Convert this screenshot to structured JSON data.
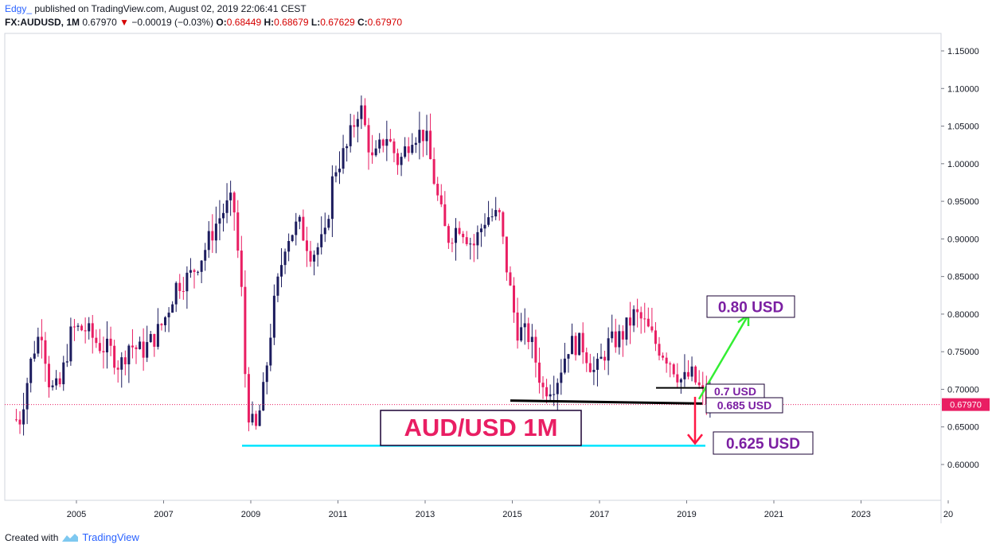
{
  "header": {
    "author": "Edgy_",
    "published": "published on TradingView.com, August 02, 2019 22:06:41 CEST",
    "symbol": "FX:AUDUSD, 1M",
    "last": "0.67970",
    "change": "−0.00019 (−0.03%)",
    "o_label": "O:",
    "o": "0.68449",
    "h_label": "H:",
    "h": "0.68679",
    "l_label": "L:",
    "l": "0.67629",
    "c_label": "C:",
    "c": "0.67970"
  },
  "footer": {
    "created_with": "Created with",
    "brand": "TradingView"
  },
  "colors": {
    "up": "#1c1c5e",
    "down": "#e91e63",
    "support": "#00e5ff",
    "green_arrow": "#33ee33",
    "red_arrow": "#ff1744",
    "label_purple": "#7b1fa2"
  },
  "chart_data": {
    "type": "candlestick",
    "title": "AUD/USD 1M",
    "y_axis": {
      "ticks": [
        "1.15000",
        "1.10000",
        "1.05000",
        "1.00000",
        "0.95000",
        "0.90000",
        "0.85000",
        "0.80000",
        "0.75000",
        "0.70000",
        "0.65000",
        "0.60000"
      ],
      "range": [
        0.57,
        1.17
      ]
    },
    "x_axis": {
      "ticks": [
        "2005",
        "2007",
        "2009",
        "2011",
        "2013",
        "2015",
        "2017",
        "2019",
        "2021",
        "2023",
        "20"
      ]
    },
    "last_price_label": "0.67970",
    "annotations": [
      {
        "text": "0.80 USD",
        "price": 0.8
      },
      {
        "text": "0.7 USD",
        "price": 0.7
      },
      {
        "text": "0.685 USD",
        "price": 0.685
      },
      {
        "text": "0.625 USD",
        "price": 0.625
      }
    ],
    "close_series": [
      {
        "year": 2003.7,
        "close": 0.66
      },
      {
        "year": 2004.0,
        "close": 0.75
      },
      {
        "year": 2004.2,
        "close": 0.78
      },
      {
        "year": 2004.4,
        "close": 0.7
      },
      {
        "year": 2004.6,
        "close": 0.7
      },
      {
        "year": 2004.9,
        "close": 0.78
      },
      {
        "year": 2005.2,
        "close": 0.78
      },
      {
        "year": 2005.5,
        "close": 0.76
      },
      {
        "year": 2005.8,
        "close": 0.75
      },
      {
        "year": 2006.0,
        "close": 0.73
      },
      {
        "year": 2006.2,
        "close": 0.76
      },
      {
        "year": 2006.5,
        "close": 0.75
      },
      {
        "year": 2006.8,
        "close": 0.77
      },
      {
        "year": 2007.0,
        "close": 0.79
      },
      {
        "year": 2007.3,
        "close": 0.84
      },
      {
        "year": 2007.6,
        "close": 0.85
      },
      {
        "year": 2007.9,
        "close": 0.88
      },
      {
        "year": 2008.2,
        "close": 0.92
      },
      {
        "year": 2008.4,
        "close": 0.94
      },
      {
        "year": 2008.6,
        "close": 0.95
      },
      {
        "year": 2008.8,
        "close": 0.82
      },
      {
        "year": 2008.9,
        "close": 0.68
      },
      {
        "year": 2009.1,
        "close": 0.64
      },
      {
        "year": 2009.3,
        "close": 0.7
      },
      {
        "year": 2009.5,
        "close": 0.8
      },
      {
        "year": 2009.8,
        "close": 0.9
      },
      {
        "year": 2010.1,
        "close": 0.92
      },
      {
        "year": 2010.4,
        "close": 0.88
      },
      {
        "year": 2010.7,
        "close": 0.9
      },
      {
        "year": 2010.9,
        "close": 0.99
      },
      {
        "year": 2011.2,
        "close": 1.02
      },
      {
        "year": 2011.5,
        "close": 1.08
      },
      {
        "year": 2011.8,
        "close": 1.0
      },
      {
        "year": 2012.1,
        "close": 1.04
      },
      {
        "year": 2012.4,
        "close": 1.0
      },
      {
        "year": 2012.7,
        "close": 1.04
      },
      {
        "year": 2013.0,
        "close": 1.04
      },
      {
        "year": 2013.3,
        "close": 0.95
      },
      {
        "year": 2013.5,
        "close": 0.9
      },
      {
        "year": 2013.8,
        "close": 0.92
      },
      {
        "year": 2014.1,
        "close": 0.89
      },
      {
        "year": 2014.4,
        "close": 0.93
      },
      {
        "year": 2014.7,
        "close": 0.93
      },
      {
        "year": 2014.9,
        "close": 0.85
      },
      {
        "year": 2015.1,
        "close": 0.78
      },
      {
        "year": 2015.4,
        "close": 0.77
      },
      {
        "year": 2015.7,
        "close": 0.7
      },
      {
        "year": 2016.0,
        "close": 0.71
      },
      {
        "year": 2016.3,
        "close": 0.76
      },
      {
        "year": 2016.6,
        "close": 0.76
      },
      {
        "year": 2016.9,
        "close": 0.72
      },
      {
        "year": 2017.2,
        "close": 0.76
      },
      {
        "year": 2017.5,
        "close": 0.77
      },
      {
        "year": 2017.8,
        "close": 0.8
      },
      {
        "year": 2018.0,
        "close": 0.79
      },
      {
        "year": 2018.3,
        "close": 0.76
      },
      {
        "year": 2018.6,
        "close": 0.74
      },
      {
        "year": 2018.9,
        "close": 0.71
      },
      {
        "year": 2019.1,
        "close": 0.72
      },
      {
        "year": 2019.3,
        "close": 0.7
      },
      {
        "year": 2019.5,
        "close": 0.68
      }
    ]
  }
}
